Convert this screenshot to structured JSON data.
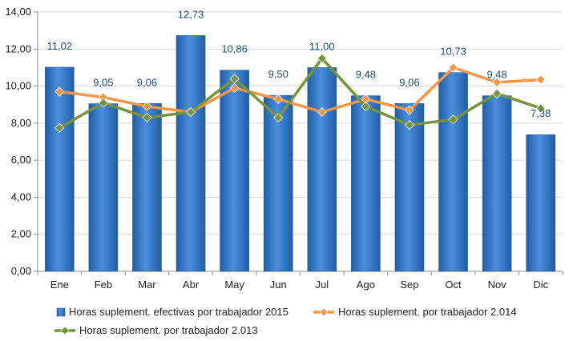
{
  "chart_data": {
    "type": "bar",
    "categories": [
      "Ene",
      "Feb",
      "Mar",
      "Abr",
      "May",
      "Jun",
      "Jul",
      "Ago",
      "Sep",
      "Oct",
      "Nov",
      "Dic"
    ],
    "ylim": [
      0,
      14
    ],
    "yticks": [
      "0,00",
      "2,00",
      "4,00",
      "6,00",
      "8,00",
      "10,00",
      "12,00",
      "14,00"
    ],
    "grid": true,
    "legend_position": "bottom",
    "series": [
      {
        "name": "Horas suplement. efectivas por trabajador 2015",
        "kind": "bar",
        "color": "#3a7dc9",
        "values": [
          11.02,
          9.05,
          9.06,
          12.73,
          10.86,
          9.5,
          11.0,
          9.48,
          9.06,
          10.73,
          9.48,
          7.38
        ],
        "labels": [
          "11,02",
          "9,05",
          "9,06",
          "12,73",
          "10,86",
          "9,50",
          "11,00",
          "9,48",
          "9,06",
          "10,73",
          "9,48",
          "7,38"
        ]
      },
      {
        "name": "Horas suplement. por trabajador 2.014",
        "kind": "line",
        "color": "#f79646",
        "values": [
          9.7,
          9.4,
          8.9,
          8.6,
          9.9,
          9.3,
          8.6,
          9.3,
          8.7,
          11.0,
          10.2,
          10.35
        ]
      },
      {
        "name": "Horas suplement. por trabajador 2.013",
        "kind": "line",
        "color": "#77933c",
        "values": [
          7.75,
          9.1,
          8.3,
          8.6,
          10.4,
          8.3,
          11.5,
          8.9,
          7.9,
          8.2,
          9.6,
          8.8
        ]
      }
    ]
  }
}
